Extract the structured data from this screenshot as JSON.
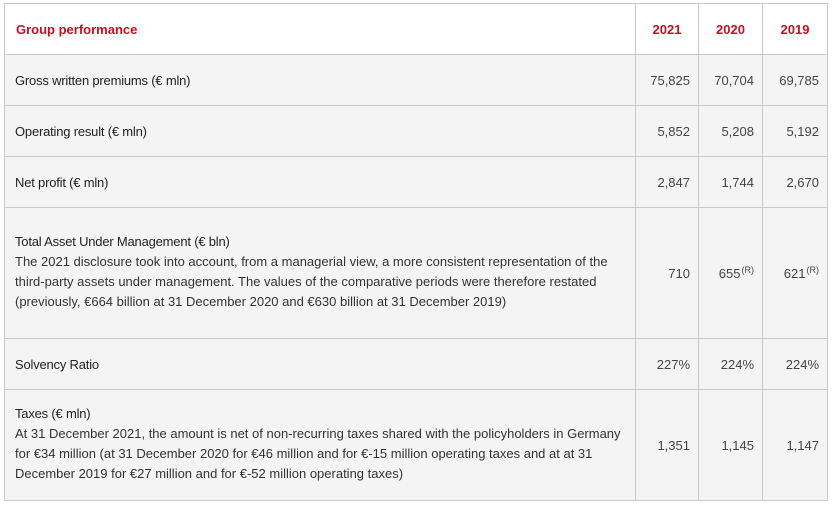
{
  "table": {
    "title": "Group performance",
    "years": [
      "2021",
      "2020",
      "2019"
    ],
    "rows": [
      {
        "label": "Gross written premiums (€ mln)",
        "note": "",
        "values": [
          "75,825",
          "70,704",
          "69,785"
        ]
      },
      {
        "label": "Operating result (€ mln)",
        "note": "",
        "values": [
          "5,852",
          "5,208",
          "5,192"
        ]
      },
      {
        "label": "Net profit (€ mln)",
        "note": "",
        "values": [
          "2,847",
          "1,744",
          "2,670"
        ]
      },
      {
        "label": "Total Asset Under Management (€ bln)",
        "note": "The 2021 disclosure took into account, from a managerial view, a more consistent representation of the third-party assets under management. The values of the comparative periods were therefore restated (previously, €664 billion at 31 December 2020 and €630 billion at 31 December 2019)",
        "values": [
          "710",
          "655",
          "621"
        ],
        "marks": [
          "",
          "(R)",
          "(R)"
        ]
      },
      {
        "label": "Solvency Ratio",
        "note": "",
        "values": [
          "227%",
          "224%",
          "224%"
        ]
      },
      {
        "label": "Taxes (€ mln)",
        "note": "At 31 December 2021, the amount is net of non-recurring taxes shared with the policyholders in Germany for €34 million (at 31 December 2020 for €46 million and for €-15 million operating taxes and at at 31 December 2019 for €27 million and for €-52 million operating taxes)",
        "values": [
          "1,351",
          "1,145",
          "1,147"
        ]
      }
    ]
  }
}
